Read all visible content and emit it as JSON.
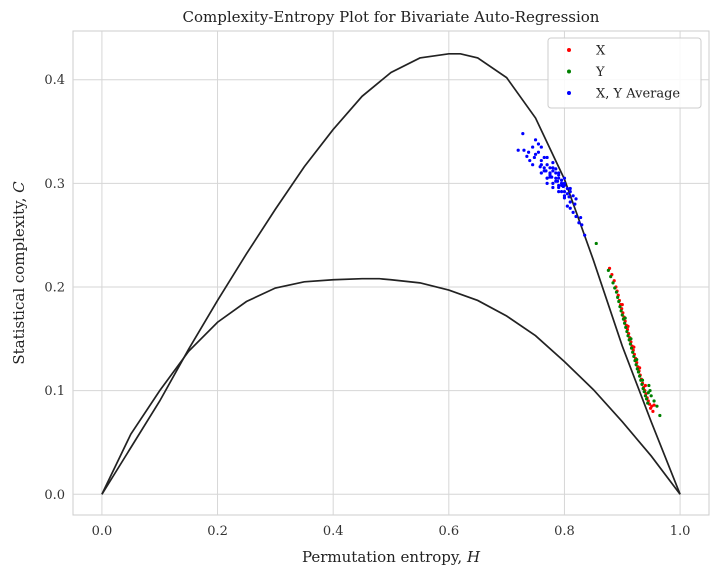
{
  "chart_data": {
    "type": "scatter",
    "title": "Complexity-Entropy Plot for Bivariate Auto-Regression",
    "xlabel": "Permutation entropy,",
    "xlabel_var": "H",
    "ylabel": "Statistical complexity,",
    "ylabel_var": "C",
    "xlim": [
      -0.05,
      1.05
    ],
    "ylim": [
      -0.02,
      0.447
    ],
    "xticks": [
      0.0,
      0.2,
      0.4,
      0.6,
      0.8,
      1.0
    ],
    "xtick_labels": [
      "0.0",
      "0.2",
      "0.4",
      "0.6",
      "0.8",
      "1.0"
    ],
    "yticks": [
      0.0,
      0.1,
      0.2,
      0.3,
      0.4
    ],
    "ytick_labels": [
      "0.0",
      "0.1",
      "0.2",
      "0.3",
      "0.4"
    ],
    "grid": true,
    "legend_position": "top-right",
    "boundary_curves": {
      "color": "#222222",
      "upper": {
        "x": [
          0.0,
          0.05,
          0.1,
          0.15,
          0.2,
          0.25,
          0.3,
          0.35,
          0.4,
          0.45,
          0.5,
          0.55,
          0.6,
          0.62,
          0.65,
          0.7,
          0.75,
          0.8,
          0.85,
          0.9,
          0.95,
          1.0
        ],
        "y": [
          0.0,
          0.045,
          0.09,
          0.14,
          0.187,
          0.232,
          0.275,
          0.316,
          0.352,
          0.384,
          0.407,
          0.421,
          0.425,
          0.425,
          0.421,
          0.402,
          0.363,
          0.304,
          0.226,
          0.143,
          0.07,
          0.0
        ]
      },
      "lower": {
        "x": [
          0.0,
          0.05,
          0.1,
          0.15,
          0.2,
          0.25,
          0.3,
          0.35,
          0.4,
          0.45,
          0.48,
          0.5,
          0.55,
          0.6,
          0.65,
          0.7,
          0.75,
          0.8,
          0.85,
          0.9,
          0.95,
          1.0
        ],
        "y": [
          0.0,
          0.058,
          0.1,
          0.138,
          0.166,
          0.186,
          0.199,
          0.205,
          0.207,
          0.208,
          0.208,
          0.207,
          0.204,
          0.197,
          0.187,
          0.172,
          0.153,
          0.128,
          0.101,
          0.07,
          0.037,
          0.0
        ]
      }
    },
    "series": [
      {
        "name": "X",
        "color": "#ff0000",
        "x": [
          0.878,
          0.882,
          0.886,
          0.889,
          0.891,
          0.893,
          0.895,
          0.897,
          0.899,
          0.901,
          0.903,
          0.905,
          0.907,
          0.909,
          0.911,
          0.913,
          0.915,
          0.917,
          0.919,
          0.921,
          0.923,
          0.925,
          0.927,
          0.929,
          0.931,
          0.933,
          0.935,
          0.937,
          0.939,
          0.941,
          0.943,
          0.945,
          0.947,
          0.949,
          0.951,
          0.953,
          0.955,
          0.9,
          0.91,
          0.92,
          0.93,
          0.94
        ],
        "y": [
          0.218,
          0.212,
          0.206,
          0.2,
          0.196,
          0.192,
          0.187,
          0.183,
          0.179,
          0.175,
          0.171,
          0.167,
          0.163,
          0.159,
          0.155,
          0.151,
          0.147,
          0.143,
          0.139,
          0.135,
          0.131,
          0.127,
          0.123,
          0.119,
          0.115,
          0.111,
          0.107,
          0.103,
          0.1,
          0.097,
          0.093,
          0.09,
          0.087,
          0.083,
          0.085,
          0.08,
          0.086,
          0.183,
          0.162,
          0.142,
          0.122,
          0.105
        ]
      },
      {
        "name": "Y",
        "color": "#008000",
        "x": [
          0.855,
          0.876,
          0.88,
          0.884,
          0.887,
          0.89,
          0.892,
          0.894,
          0.896,
          0.898,
          0.9,
          0.902,
          0.904,
          0.906,
          0.908,
          0.91,
          0.912,
          0.914,
          0.916,
          0.918,
          0.92,
          0.922,
          0.924,
          0.926,
          0.928,
          0.93,
          0.932,
          0.934,
          0.936,
          0.938,
          0.94,
          0.942,
          0.944,
          0.946,
          0.948,
          0.95,
          0.955,
          0.96,
          0.965,
          0.905,
          0.915,
          0.925,
          0.935,
          0.945
        ],
        "y": [
          0.242,
          0.216,
          0.21,
          0.204,
          0.199,
          0.195,
          0.19,
          0.186,
          0.181,
          0.177,
          0.173,
          0.169,
          0.165,
          0.161,
          0.157,
          0.153,
          0.149,
          0.145,
          0.141,
          0.137,
          0.133,
          0.129,
          0.125,
          0.121,
          0.118,
          0.114,
          0.11,
          0.106,
          0.102,
          0.099,
          0.095,
          0.092,
          0.088,
          0.105,
          0.1,
          0.095,
          0.09,
          0.085,
          0.076,
          0.17,
          0.15,
          0.13,
          0.11,
          0.098
        ]
      },
      {
        "name": "X, Y Average",
        "color": "#0000ff",
        "x": [
          0.72,
          0.73,
          0.735,
          0.74,
          0.745,
          0.75,
          0.755,
          0.76,
          0.765,
          0.77,
          0.775,
          0.78,
          0.785,
          0.79,
          0.795,
          0.8,
          0.805,
          0.81,
          0.815,
          0.82,
          0.825,
          0.83,
          0.835,
          0.75,
          0.76,
          0.765,
          0.77,
          0.775,
          0.78,
          0.785,
          0.79,
          0.795,
          0.8,
          0.805,
          0.81,
          0.76,
          0.77,
          0.78,
          0.79,
          0.8,
          0.81,
          0.82,
          0.745,
          0.755,
          0.765,
          0.775,
          0.785,
          0.795,
          0.805,
          0.815,
          0.728,
          0.738,
          0.748,
          0.758,
          0.768,
          0.778,
          0.788,
          0.798,
          0.808,
          0.818,
          0.828,
          0.77,
          0.78,
          0.79,
          0.8,
          0.81,
          0.76,
          0.77,
          0.78,
          0.79,
          0.8,
          0.79,
          0.795,
          0.8,
          0.785,
          0.775
        ],
        "y": [
          0.332,
          0.332,
          0.326,
          0.322,
          0.318,
          0.342,
          0.33,
          0.318,
          0.312,
          0.305,
          0.31,
          0.3,
          0.305,
          0.296,
          0.292,
          0.286,
          0.278,
          0.276,
          0.272,
          0.268,
          0.262,
          0.26,
          0.25,
          0.328,
          0.322,
          0.315,
          0.318,
          0.308,
          0.312,
          0.302,
          0.298,
          0.3,
          0.292,
          0.29,
          0.282,
          0.335,
          0.325,
          0.32,
          0.31,
          0.305,
          0.292,
          0.285,
          0.335,
          0.338,
          0.325,
          0.315,
          0.31,
          0.298,
          0.295,
          0.288,
          0.348,
          0.33,
          0.325,
          0.316,
          0.312,
          0.306,
          0.302,
          0.297,
          0.287,
          0.28,
          0.267,
          0.3,
          0.315,
          0.305,
          0.3,
          0.295,
          0.31,
          0.305,
          0.296,
          0.292,
          0.288,
          0.308,
          0.303,
          0.298,
          0.314,
          0.306
        ]
      }
    ]
  }
}
